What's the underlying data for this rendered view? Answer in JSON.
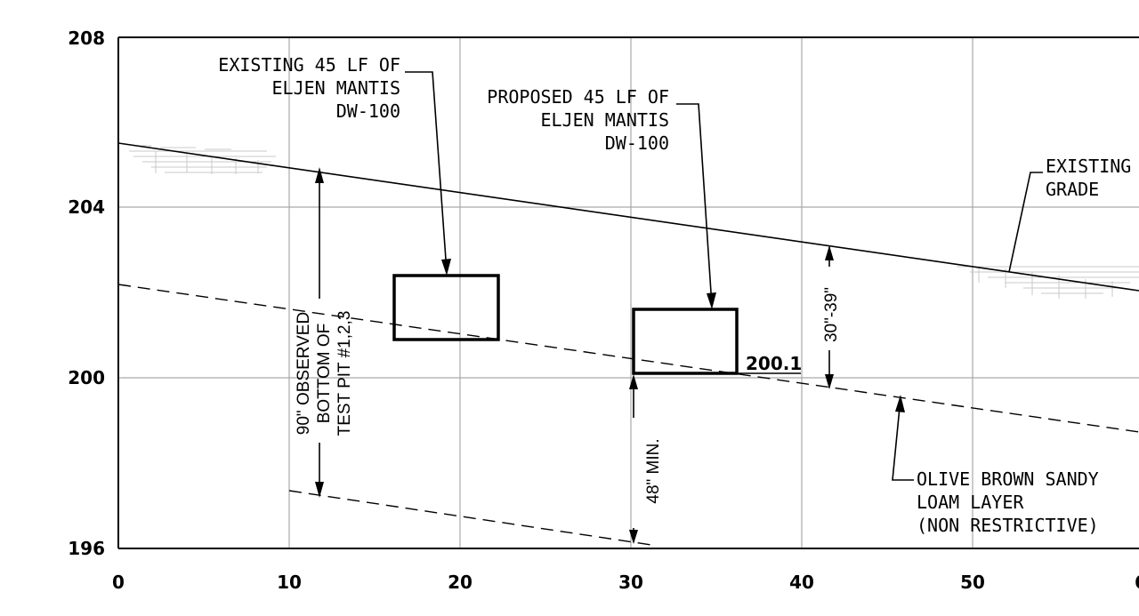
{
  "axes": {
    "x_ticks": [
      "0",
      "10",
      "20",
      "30",
      "40",
      "50",
      "6"
    ],
    "y_ticks": [
      "208",
      "204",
      "200",
      "196"
    ]
  },
  "labels": {
    "existing_system": [
      "EXISTING 45 LF OF",
      "ELJEN MANTIS",
      "DW-100"
    ],
    "proposed_system": [
      "PROPOSED 45 LF OF",
      "ELJEN MANTIS",
      "DW-100"
    ],
    "existing_grade": [
      "EXISTING",
      "GRADE"
    ],
    "soil_layer": [
      "OLIVE BROWN SANDY",
      "LOAM LAYER",
      "(NON RESTRICTIVE)"
    ],
    "test_pit": [
      "90\" OBSERVED",
      "BOTTOM OF",
      "TEST PIT #1,2,3"
    ],
    "separation_min": "48\" MIN.",
    "separation_range": "30\"-39\"",
    "bottom_elevation": "200.1"
  },
  "colors": {
    "line": "#000000",
    "grid": "#a9a9a9",
    "hatch": "#c9c9c9",
    "background": "#ffffff"
  }
}
